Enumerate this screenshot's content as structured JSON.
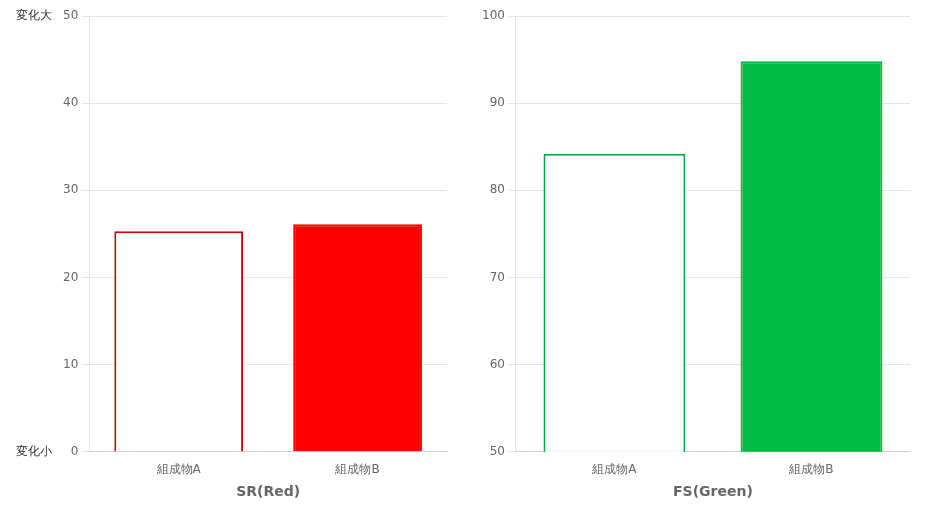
{
  "chart_data": [
    {
      "type": "bar",
      "x_label": "SR(Red)",
      "categories": [
        "組成物A",
        "組成物B"
      ],
      "values": [
        25.3,
        26.1
      ],
      "colors": [
        "#cc0000",
        "#ff0000"
      ],
      "ylim": [
        0,
        50
      ],
      "yticks": [
        0,
        10,
        20,
        30,
        40,
        50
      ],
      "grid": true,
      "annotations": [
        {
          "text": "変化大",
          "y": 50
        },
        {
          "text": "変化小",
          "y": 0
        }
      ]
    },
    {
      "type": "bar",
      "x_label": "FS(Green)",
      "categories": [
        "組成物A",
        "組成物B"
      ],
      "values": [
        84.2,
        94.8
      ],
      "colors": [
        "#00aa44",
        "#00bb44"
      ],
      "ylim": [
        50,
        100
      ],
      "yticks": [
        50,
        60,
        70,
        80,
        90,
        100
      ],
      "grid": true
    }
  ]
}
